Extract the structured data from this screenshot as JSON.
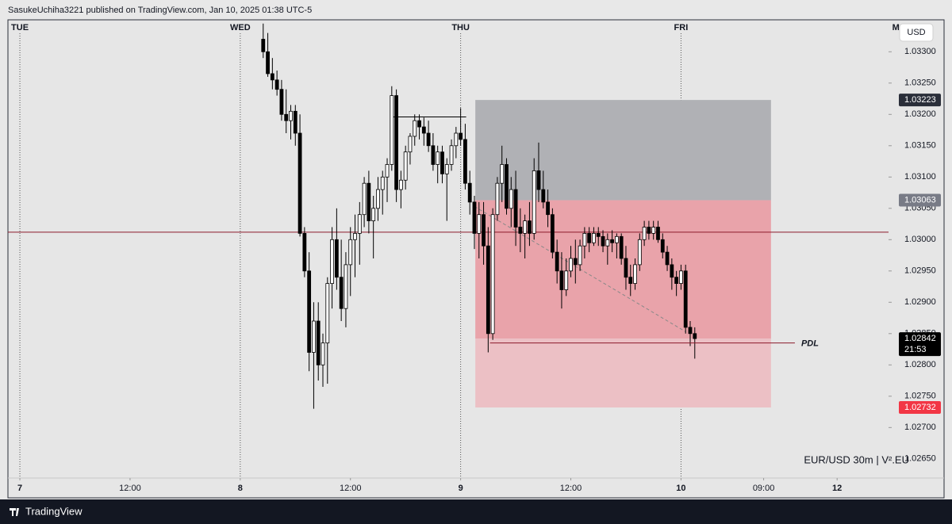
{
  "header": "SasukeUchiha3221 published on TradingView.com, Jan 10, 2025 01:38 UTC-5",
  "footer": "TradingView",
  "currency": "USD",
  "chart_data": {
    "type": "candlestick",
    "watermark": "EUR/USD 30m  |  V².EU",
    "xlim": [
      -1.3,
      94.6
    ],
    "ylim": [
      1.02589,
      1.03351
    ],
    "xticks": [
      {
        "value": 0,
        "label": "7"
      },
      {
        "value": 12,
        "label": "12:00"
      },
      {
        "value": 24,
        "label": "8"
      },
      {
        "value": 36,
        "label": "12:00"
      },
      {
        "value": 48,
        "label": "9"
      },
      {
        "value": 60,
        "label": "12:00"
      },
      {
        "value": 72,
        "label": "10"
      },
      {
        "value": 81,
        "label": "09:00"
      },
      {
        "value": 89,
        "label": "12"
      }
    ],
    "day_labels": [
      {
        "value": 0,
        "label": "TUE"
      },
      {
        "value": 24,
        "label": "WED"
      },
      {
        "value": 48,
        "label": "THU"
      },
      {
        "value": 72,
        "label": "FRI"
      },
      {
        "value": 95.4,
        "label": "M"
      }
    ],
    "yticks": [
      {
        "value": 1.033,
        "label": "1.03300"
      },
      {
        "value": 1.0325,
        "label": "1.03250"
      },
      {
        "value": 1.032,
        "label": "1.03200"
      },
      {
        "value": 1.0315,
        "label": "1.03150"
      },
      {
        "value": 1.031,
        "label": "1.03100"
      },
      {
        "value": 1.0305,
        "label": "1.03050"
      },
      {
        "value": 1.03,
        "label": "1.03000"
      },
      {
        "value": 1.0295,
        "label": "1.02950"
      },
      {
        "value": 1.029,
        "label": "1.02900"
      },
      {
        "value": 1.0285,
        "label": "1.02850"
      },
      {
        "value": 1.028,
        "label": "1.02800"
      },
      {
        "value": 1.0275,
        "label": "1.02750"
      },
      {
        "value": 1.027,
        "label": "1.02700"
      },
      {
        "value": 1.0265,
        "label": "1.02650"
      }
    ],
    "x": [
      26.5,
      27,
      27.5,
      28,
      28.5,
      29,
      29.5,
      30,
      30.5,
      31,
      31.5,
      32,
      32.5,
      33,
      33.5,
      34,
      34.5,
      35,
      35.5,
      36,
      36.5,
      37,
      37.5,
      38,
      38.5,
      39,
      39.5,
      40,
      40.5,
      41,
      41.5,
      42,
      42.5,
      43,
      43.5,
      44,
      44.5,
      45,
      45.5,
      46,
      46.5,
      47,
      47.5,
      48,
      48.5,
      49,
      49.5,
      50,
      50.5,
      51,
      51.5,
      52,
      52.5,
      53,
      53.5,
      54,
      54.5,
      55,
      55.5,
      56,
      56.5,
      57,
      57.5,
      58,
      58.5,
      59,
      59.5,
      60,
      60.5,
      61,
      61.5,
      62,
      62.5,
      63,
      63.5,
      64,
      64.5,
      65,
      65.5,
      66,
      66.5,
      67,
      67.5,
      68,
      68.5,
      69,
      69.5,
      70,
      70.5,
      71,
      71.5,
      72,
      72.5,
      73,
      73.5
    ],
    "ohlc": [
      [
        1.0332,
        1.03345,
        1.0329,
        1.033
      ],
      [
        1.033,
        1.0333,
        1.0326,
        1.03265
      ],
      [
        1.03265,
        1.0329,
        1.0324,
        1.03255
      ],
      [
        1.03255,
        1.0327,
        1.0323,
        1.0324
      ],
      [
        1.0324,
        1.03255,
        1.0319,
        1.032
      ],
      [
        1.032,
        1.0324,
        1.0317,
        1.0319
      ],
      [
        1.0319,
        1.03215,
        1.0316,
        1.03205
      ],
      [
        1.03205,
        1.03215,
        1.0315,
        1.0317
      ],
      [
        1.0317,
        1.032,
        1.03005,
        1.0301
      ],
      [
        1.0301,
        1.0302,
        1.0294,
        1.0295
      ],
      [
        1.0295,
        1.0298,
        1.0279,
        1.0282
      ],
      [
        1.0282,
        1.029,
        1.0273,
        1.0287
      ],
      [
        1.0287,
        1.029,
        1.02775,
        1.028
      ],
      [
        1.028,
        1.0285,
        1.02765,
        1.02835
      ],
      [
        1.02835,
        1.0294,
        1.0277,
        1.0293
      ],
      [
        1.0293,
        1.0302,
        1.0289,
        1.03
      ],
      [
        1.03,
        1.0305,
        1.0292,
        1.0294
      ],
      [
        1.0294,
        1.03,
        1.0287,
        1.0289
      ],
      [
        1.0289,
        1.0298,
        1.0286,
        1.0296
      ],
      [
        1.0296,
        1.0302,
        1.0291,
        1.03
      ],
      [
        1.03,
        1.0304,
        1.0294,
        1.0301
      ],
      [
        1.0301,
        1.0306,
        1.0296,
        1.0304
      ],
      [
        1.0304,
        1.031,
        1.0302,
        1.0309
      ],
      [
        1.0309,
        1.0311,
        1.0301,
        1.0303
      ],
      [
        1.0303,
        1.0307,
        1.0297,
        1.0305
      ],
      [
        1.0305,
        1.031,
        1.0303,
        1.0308
      ],
      [
        1.0308,
        1.0311,
        1.0304,
        1.031
      ],
      [
        1.031,
        1.0313,
        1.0306,
        1.0312
      ],
      [
        1.0312,
        1.03245,
        1.0311,
        1.0323
      ],
      [
        1.0323,
        1.0324,
        1.0306,
        1.0308
      ],
      [
        1.0308,
        1.0311,
        1.0305,
        1.03095
      ],
      [
        1.03095,
        1.0315,
        1.0308,
        1.0314
      ],
      [
        1.0314,
        1.0317,
        1.0312,
        1.03165
      ],
      [
        1.03165,
        1.032,
        1.0315,
        1.0319
      ],
      [
        1.0319,
        1.032,
        1.0316,
        1.0318
      ],
      [
        1.0318,
        1.03195,
        1.0315,
        1.0317
      ],
      [
        1.0317,
        1.0319,
        1.0314,
        1.0315
      ],
      [
        1.0315,
        1.0317,
        1.0311,
        1.0312
      ],
      [
        1.0312,
        1.0315,
        1.0309,
        1.0314
      ],
      [
        1.0314,
        1.0315,
        1.0309,
        1.03105
      ],
      [
        1.03105,
        1.0313,
        1.0303,
        1.0312
      ],
      [
        1.0312,
        1.0316,
        1.0311,
        1.0315
      ],
      [
        1.0315,
        1.0318,
        1.0313,
        1.0317
      ],
      [
        1.0317,
        1.0321,
        1.0315,
        1.0316
      ],
      [
        1.0316,
        1.03185,
        1.0308,
        1.0309
      ],
      [
        1.0309,
        1.0311,
        1.0304,
        1.0306
      ],
      [
        1.0306,
        1.0307,
        1.02985,
        1.0301
      ],
      [
        1.0301,
        1.0306,
        1.0297,
        1.0304
      ],
      [
        1.0304,
        1.0306,
        1.0296,
        1.0299
      ],
      [
        1.0299,
        1.0302,
        1.0282,
        1.0285
      ],
      [
        1.0285,
        1.0305,
        1.0284,
        1.0304
      ],
      [
        1.0304,
        1.031,
        1.0303,
        1.0309
      ],
      [
        1.0309,
        1.0315,
        1.0306,
        1.0312
      ],
      [
        1.0312,
        1.0313,
        1.0304,
        1.0305
      ],
      [
        1.0305,
        1.031,
        1.0302,
        1.0308
      ],
      [
        1.0308,
        1.0311,
        1.0299,
        1.0302
      ],
      [
        1.0302,
        1.0305,
        1.0298,
        1.0301
      ],
      [
        1.0301,
        1.0304,
        1.0297,
        1.0303
      ],
      [
        1.0303,
        1.0306,
        1.0299,
        1.0301
      ],
      [
        1.0301,
        1.0313,
        1.03,
        1.0311
      ],
      [
        1.0311,
        1.03155,
        1.0306,
        1.0308
      ],
      [
        1.0308,
        1.0311,
        1.0305,
        1.0306
      ],
      [
        1.0306,
        1.0308,
        1.0302,
        1.0304
      ],
      [
        1.0304,
        1.0305,
        1.0297,
        1.0298
      ],
      [
        1.0298,
        1.03,
        1.0293,
        1.0295
      ],
      [
        1.0295,
        1.0298,
        1.0289,
        1.0292
      ],
      [
        1.0292,
        1.0297,
        1.0291,
        1.0295
      ],
      [
        1.0295,
        1.0299,
        1.0294,
        1.0297
      ],
      [
        1.0297,
        1.03,
        1.0293,
        1.0296
      ],
      [
        1.0296,
        1.03,
        1.0295,
        1.0299
      ],
      [
        1.0299,
        1.0302,
        1.0297,
        1.0301
      ],
      [
        1.0301,
        1.0302,
        1.0298,
        1.02995
      ],
      [
        1.02995,
        1.0302,
        1.0299,
        1.0301
      ],
      [
        1.0301,
        1.0302,
        1.0299,
        1.03005
      ],
      [
        1.03005,
        1.03015,
        1.0298,
        1.0299
      ],
      [
        1.0299,
        1.0301,
        1.0296,
        1.03
      ],
      [
        1.03,
        1.03015,
        1.0298,
        1.02995
      ],
      [
        1.02995,
        1.0301,
        1.0297,
        1.03005
      ],
      [
        1.03005,
        1.0301,
        1.0296,
        1.0297
      ],
      [
        1.0297,
        1.0299,
        1.0292,
        1.0294
      ],
      [
        1.0294,
        1.0296,
        1.0291,
        1.0293
      ],
      [
        1.0293,
        1.0297,
        1.0292,
        1.0296
      ],
      [
        1.0296,
        1.0301,
        1.0295,
        1.03
      ],
      [
        1.03,
        1.0303,
        1.0299,
        1.0302
      ],
      [
        1.0302,
        1.0303,
        1.03,
        1.0301
      ],
      [
        1.0301,
        1.0303,
        1.03,
        1.0302
      ],
      [
        1.0302,
        1.0303,
        1.02995,
        1.03
      ],
      [
        1.03,
        1.0301,
        1.0297,
        1.0298
      ],
      [
        1.0298,
        1.0299,
        1.0295,
        1.0296
      ],
      [
        1.0296,
        1.0297,
        1.0292,
        1.0294
      ],
      [
        1.0294,
        1.0295,
        1.0291,
        1.0293
      ],
      [
        1.0293,
        1.0296,
        1.0292,
        1.0295
      ],
      [
        1.0295,
        1.0296,
        1.0285,
        1.0286
      ],
      [
        1.0286,
        1.0287,
        1.0283,
        1.0285
      ],
      [
        1.0285,
        1.0286,
        1.0281,
        1.02842
      ]
    ],
    "up_color": "#ffffff",
    "down_color": "#000000",
    "position": {
      "x": [
        49.6,
        81.8
      ],
      "stop": 1.03223,
      "entry": 1.03063,
      "current": 1.02842,
      "target": 1.02732
    },
    "hline": {
      "y": 1.03012,
      "color": "#8b1a2b"
    },
    "level_line": {
      "x": [
        40.4,
        48.6
      ],
      "y": 1.03196
    },
    "pdl": {
      "label": "PDL",
      "x": [
        51.2,
        84.4
      ],
      "y": 1.02835
    },
    "trend_line": {
      "x": [
        49.5,
        72.5
      ],
      "y": [
        1.03053,
        1.02853
      ]
    },
    "price_labels": [
      {
        "value": 1.03223,
        "color": "#2a2e39"
      },
      {
        "value": 1.03063,
        "color": "#787b86"
      },
      {
        "value": 1.02842,
        "color": "#000000"
      },
      {
        "value": 1.02732,
        "color": "#f23645"
      }
    ],
    "countdown": "21:53"
  }
}
